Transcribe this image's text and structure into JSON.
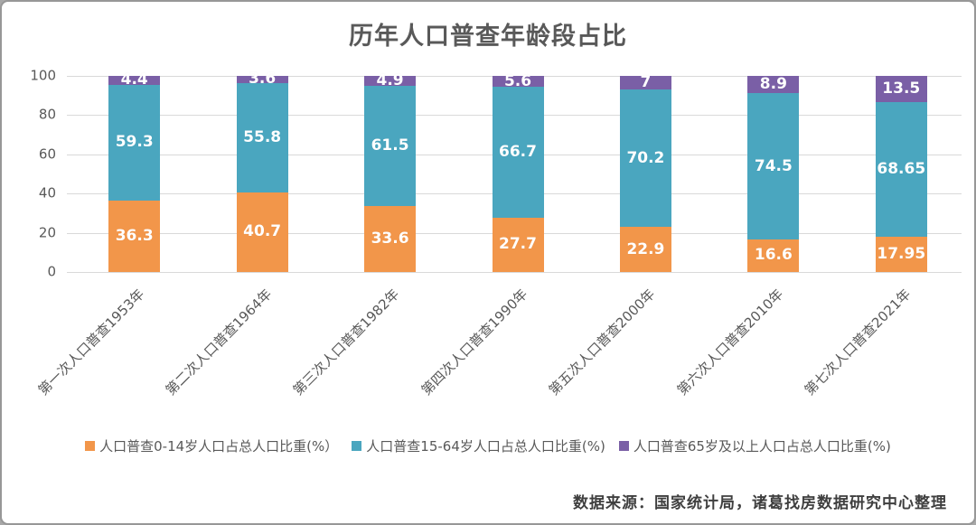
{
  "chart": {
    "title": "历年人口普查年龄段占比",
    "source": "数据来源：国家统计局，诸葛找房数据研究中心整理"
  },
  "chart_data": {
    "type": "bar",
    "stacked": true,
    "title": "历年人口普查年龄段占比",
    "categories": [
      "第一次人口普查1953年",
      "第二次人口普查1964年",
      "第三次人口普查1982年",
      "第四次人口普查1990年",
      "第五次人口普查2000年",
      "第六次人口普查2010年",
      "第七次人口普查2021年"
    ],
    "series": [
      {
        "id": "age-0-14",
        "name": "人口普查0-14岁人口占总人口比重(%）",
        "color": "#F2964A",
        "values": [
          36.3,
          40.7,
          33.6,
          27.7,
          22.9,
          16.6,
          17.95
        ]
      },
      {
        "id": "age-15-64",
        "name": "人口普查15-64岁人口占总人口比重(%)",
        "color": "#4AA6BF",
        "values": [
          59.3,
          55.8,
          61.5,
          66.7,
          70.2,
          74.5,
          68.65
        ]
      },
      {
        "id": "age-65-plus",
        "name": "人口普查65岁及以上人口占总人口比重(%)",
        "color": "#7A5FA6",
        "values": [
          4.4,
          3.6,
          4.9,
          5.6,
          7,
          8.9,
          13.5
        ]
      }
    ],
    "xlabel": "",
    "ylabel": "",
    "ylim": [
      0,
      100
    ],
    "yticks": [
      0,
      20,
      40,
      60,
      80,
      100
    ],
    "grid": true,
    "gridline_color": "#d9d9d9",
    "axis_text_color": "#595959",
    "data_label_color": "#ffffff",
    "legend_position": "bottom"
  }
}
